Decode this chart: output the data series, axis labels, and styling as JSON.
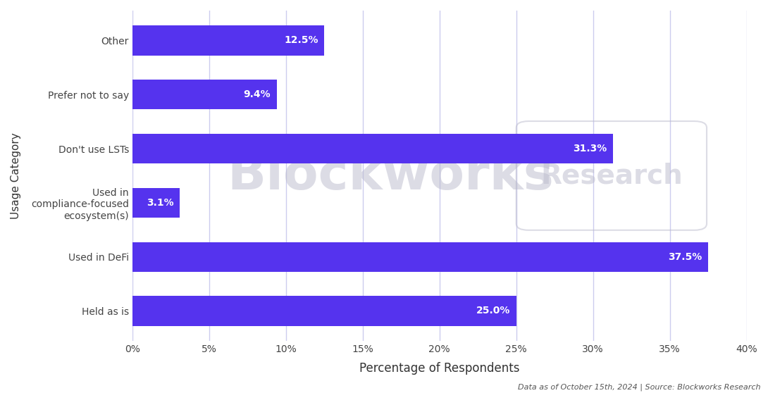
{
  "title_color": "#111111",
  "subtitle_color": "#6633ff",
  "categories": [
    "Other",
    "Prefer not to say",
    "Don't use LSTs",
    "Used in\ncompliance-focused\necosystem(s)",
    "Used in DeFi",
    "Held as is"
  ],
  "values": [
    12.5,
    9.4,
    31.3,
    3.1,
    37.5,
    25.0
  ],
  "bar_color": "#5533ee",
  "bar_label_color": "#ffffff",
  "bar_label_fontsize": 10,
  "xlabel": "Percentage of Respondents",
  "ylabel": "Usage Category",
  "xlim": [
    0,
    40
  ],
  "xticks": [
    0,
    5,
    10,
    15,
    20,
    25,
    30,
    35,
    40
  ],
  "xtick_labels": [
    "0%",
    "5%",
    "10%",
    "15%",
    "20%",
    "25%",
    "30%",
    "35%",
    "40%"
  ],
  "background_color": "#ffffff",
  "plot_background_color": "#ffffff",
  "grid_color": "#ccccee",
  "footer_text": "Data as of October 15th, 2024 | Source: Blockworks Research",
  "footer_fontsize": 8,
  "footer_color": "#555555",
  "title_fontsize": 20,
  "subtitle_fontsize": 13,
  "xlabel_fontsize": 12,
  "ylabel_fontsize": 11,
  "tick_fontsize": 10,
  "watermark_main": "Blockworks",
  "watermark_sub": "Research",
  "watermark_color": "#bbbbcc",
  "watermark_alpha": 0.5
}
